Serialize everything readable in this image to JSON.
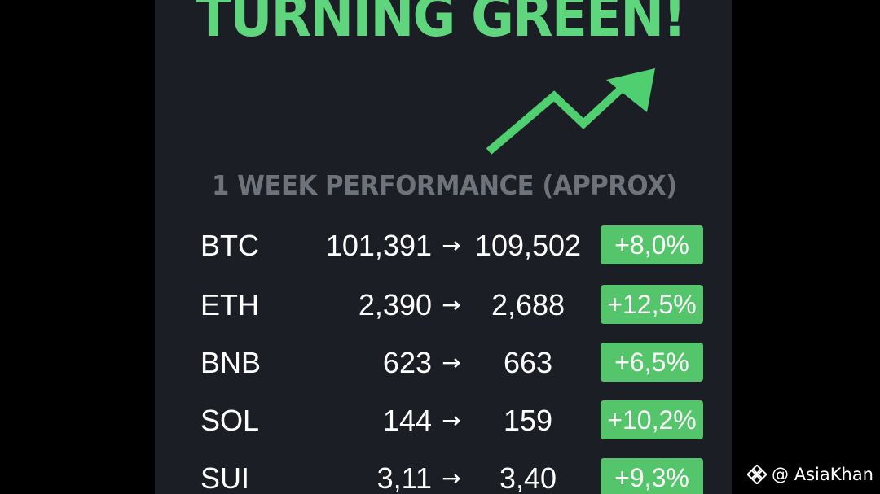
{
  "headline": "TURNING GREEN!",
  "subtitle": "1 WEEK PERFORMANCE (APPROX)",
  "colors": {
    "accent_green": "#5fd67d",
    "badge_green": "#54c56b",
    "panel_bg": "#1b1e24",
    "subtitle_gray": "#6e737b"
  },
  "icons": {
    "trend": "trend-up-arrow-icon",
    "watermark": "binance-logo-icon"
  },
  "rows": [
    {
      "symbol": "BTC",
      "from": "101,391",
      "arrow": "→",
      "to": "109,502",
      "change": "+8,0%"
    },
    {
      "symbol": "ETH",
      "from": "2,390",
      "arrow": "→",
      "to": "2,688",
      "change": "+12,5%"
    },
    {
      "symbol": "BNB",
      "from": "623",
      "arrow": "→",
      "to": "663",
      "change": "+6,5%"
    },
    {
      "symbol": "SOL",
      "from": "144",
      "arrow": "→",
      "to": "159",
      "change": "+10,2%"
    },
    {
      "symbol": "SUI",
      "from": "3,11",
      "arrow": "→",
      "to": "3,40",
      "change": "+9,3%"
    }
  ],
  "watermark": {
    "handle": "@ AsiaKhan"
  }
}
